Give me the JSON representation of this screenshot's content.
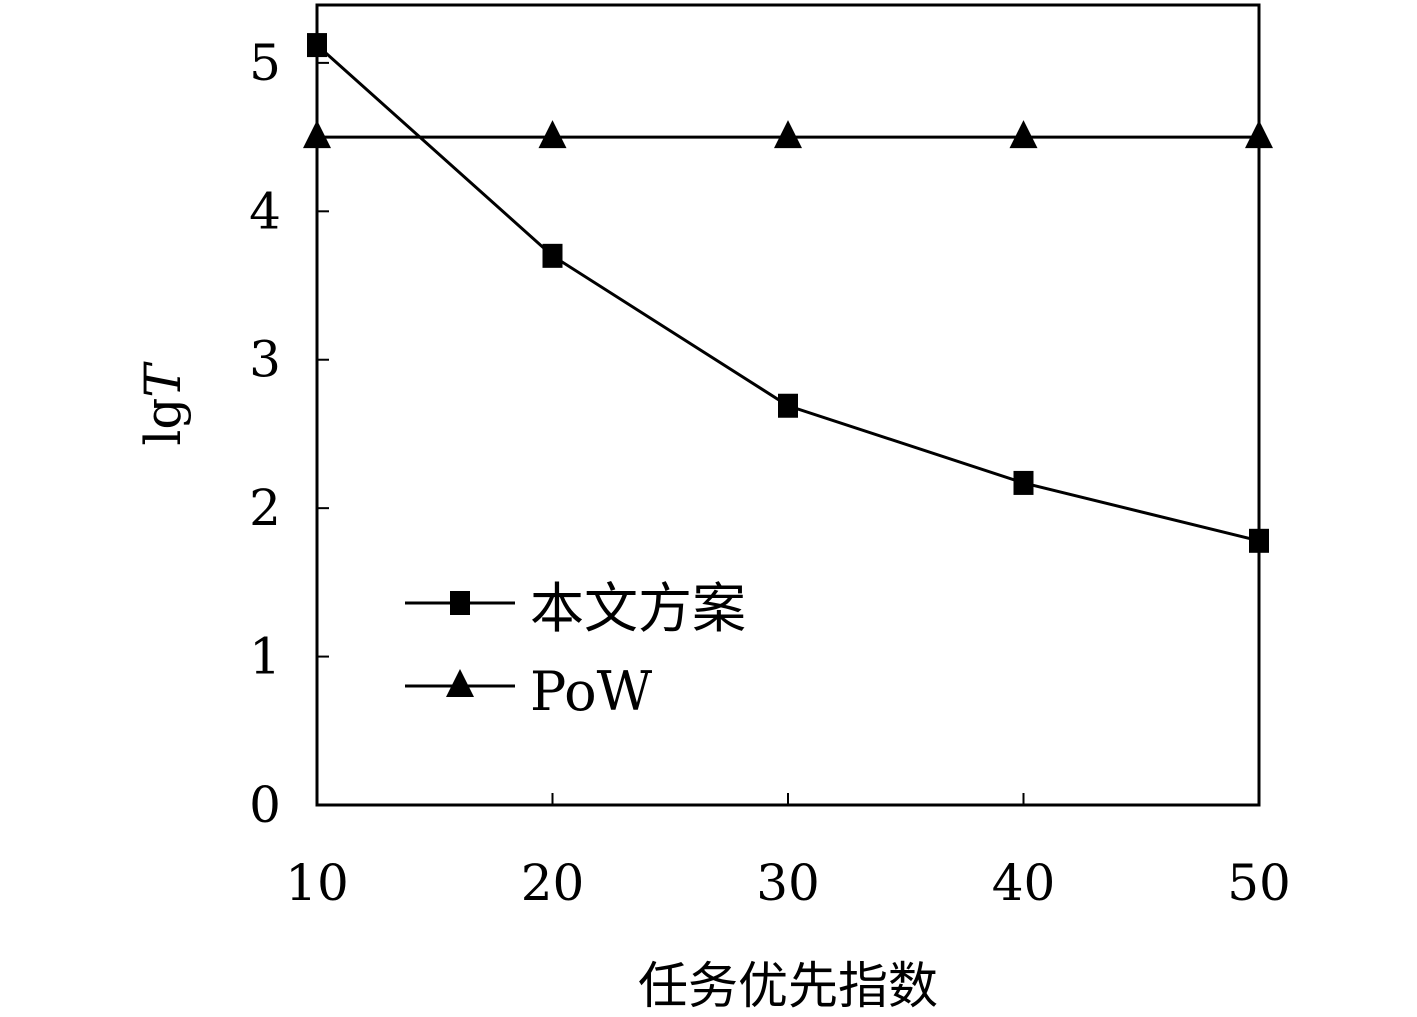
{
  "chart_data": {
    "type": "line",
    "title": "",
    "xlabel": "任务优先指数",
    "ylabel": "lg",
    "ylabel_italic": "T",
    "xlim": [
      10,
      50
    ],
    "ylim": [
      0,
      5.39
    ],
    "xticks": [
      10,
      20,
      30,
      40,
      50
    ],
    "yticks": [
      0,
      1,
      2,
      3,
      4,
      5
    ],
    "grid": false,
    "legend_position": "bottom-left",
    "x": [
      10,
      20,
      30,
      40,
      50
    ],
    "series": [
      {
        "name": "本文方案",
        "marker": "square",
        "values": [
          5.12,
          3.7,
          2.69,
          2.17,
          1.78
        ]
      },
      {
        "name": "PoW",
        "marker": "triangle",
        "values": [
          4.5,
          4.5,
          4.5,
          4.5,
          4.5
        ]
      }
    ],
    "colors": {
      "line": "#000000",
      "background": "#ffffff"
    }
  }
}
